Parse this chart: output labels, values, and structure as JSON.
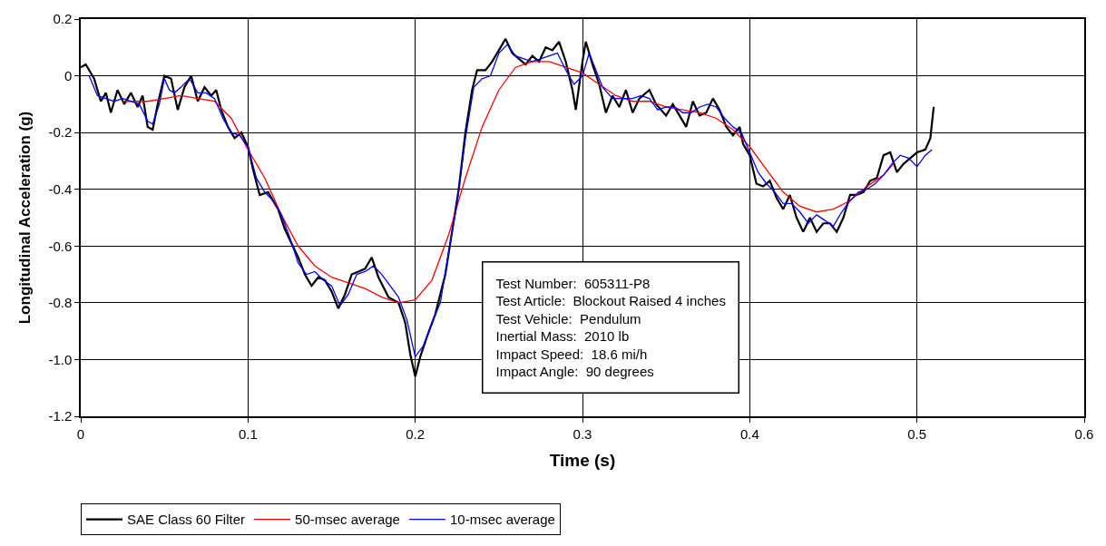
{
  "chart_data": {
    "type": "line",
    "xlabel": "Time (s)",
    "ylabel": "Longitudinal Acceleration (g)",
    "xlim": [
      0,
      0.6
    ],
    "xticks": [
      0,
      0.1,
      0.2,
      0.3,
      0.4,
      0.5,
      0.6
    ],
    "ylim": [
      -1.2,
      0.2
    ],
    "yticks": [
      0.2,
      0,
      -0.2,
      -0.4,
      -0.6,
      -0.8,
      {
        "value": -1.0,
        "label": "-1.0"
      },
      -1.2
    ],
    "grid": true,
    "legend": "bottom",
    "marker": "none",
    "line_style": "solid",
    "annotations": [
      "Test Number:  605311-P8",
      "Test Article:  Blockout Raised 4 inches",
      "Test Vehicle:  Pendulum",
      "Inertial Mass:  2010 lb",
      "Impact Speed:  18.6 mi/h",
      "Impact Angle:  90 degrees"
    ],
    "series": [
      {
        "name": "SAE Class 60 Filter",
        "color": "#000000",
        "x": [
          0.0,
          0.003,
          0.008,
          0.012,
          0.015,
          0.018,
          0.022,
          0.026,
          0.03,
          0.034,
          0.037,
          0.04,
          0.043,
          0.046,
          0.05,
          0.054,
          0.058,
          0.062,
          0.066,
          0.07,
          0.074,
          0.078,
          0.081,
          0.084,
          0.088,
          0.092,
          0.096,
          0.1,
          0.103,
          0.107,
          0.112,
          0.118,
          0.122,
          0.126,
          0.13,
          0.134,
          0.138,
          0.142,
          0.146,
          0.15,
          0.154,
          0.158,
          0.162,
          0.166,
          0.17,
          0.174,
          0.178,
          0.184,
          0.19,
          0.194,
          0.197,
          0.2,
          0.203,
          0.207,
          0.212,
          0.218,
          0.222,
          0.226,
          0.23,
          0.234,
          0.237,
          0.242,
          0.246,
          0.25,
          0.254,
          0.258,
          0.262,
          0.266,
          0.27,
          0.274,
          0.278,
          0.282,
          0.286,
          0.29,
          0.294,
          0.296,
          0.3,
          0.302,
          0.306,
          0.31,
          0.314,
          0.318,
          0.322,
          0.326,
          0.33,
          0.334,
          0.34,
          0.344,
          0.35,
          0.354,
          0.358,
          0.362,
          0.366,
          0.37,
          0.374,
          0.378,
          0.382,
          0.386,
          0.39,
          0.394,
          0.396,
          0.4,
          0.404,
          0.408,
          0.412,
          0.416,
          0.42,
          0.424,
          0.428,
          0.432,
          0.436,
          0.44,
          0.444,
          0.448,
          0.452,
          0.456,
          0.46,
          0.464,
          0.468,
          0.472,
          0.476,
          0.48,
          0.484,
          0.488,
          0.492,
          0.496,
          0.5,
          0.505,
          0.508,
          0.51
        ],
        "values": [
          0.03,
          0.04,
          -0.01,
          -0.09,
          -0.06,
          -0.13,
          -0.05,
          -0.1,
          -0.06,
          -0.11,
          -0.07,
          -0.18,
          -0.19,
          -0.1,
          0.0,
          -0.01,
          -0.12,
          -0.04,
          0.0,
          -0.09,
          -0.04,
          -0.07,
          -0.05,
          -0.12,
          -0.18,
          -0.22,
          -0.2,
          -0.25,
          -0.33,
          -0.42,
          -0.41,
          -0.47,
          -0.54,
          -0.59,
          -0.64,
          -0.7,
          -0.74,
          -0.71,
          -0.72,
          -0.76,
          -0.82,
          -0.77,
          -0.7,
          -0.69,
          -0.68,
          -0.64,
          -0.71,
          -0.78,
          -0.8,
          -0.87,
          -0.98,
          -1.06,
          -0.99,
          -0.92,
          -0.84,
          -0.7,
          -0.55,
          -0.4,
          -0.2,
          -0.05,
          0.02,
          0.02,
          0.05,
          0.09,
          0.13,
          0.08,
          0.06,
          0.04,
          0.07,
          0.05,
          0.1,
          0.09,
          0.12,
          0.05,
          -0.05,
          -0.12,
          0.05,
          0.12,
          0.04,
          -0.03,
          -0.13,
          -0.07,
          -0.11,
          -0.05,
          -0.13,
          -0.08,
          -0.05,
          -0.1,
          -0.14,
          -0.1,
          -0.14,
          -0.18,
          -0.09,
          -0.14,
          -0.13,
          -0.08,
          -0.12,
          -0.18,
          -0.21,
          -0.18,
          -0.24,
          -0.28,
          -0.38,
          -0.39,
          -0.37,
          -0.43,
          -0.47,
          -0.42,
          -0.5,
          -0.55,
          -0.5,
          -0.55,
          -0.52,
          -0.52,
          -0.55,
          -0.5,
          -0.42,
          -0.42,
          -0.41,
          -0.37,
          -0.36,
          -0.28,
          -0.27,
          -0.34,
          -0.31,
          -0.29,
          -0.27,
          -0.26,
          -0.22,
          -0.11
        ]
      },
      {
        "name": "50-msec average",
        "color": "#ff0000",
        "x": [
          0.025,
          0.04,
          0.05,
          0.06,
          0.07,
          0.08,
          0.09,
          0.1,
          0.11,
          0.12,
          0.13,
          0.14,
          0.15,
          0.16,
          0.17,
          0.18,
          0.19,
          0.2,
          0.21,
          0.22,
          0.23,
          0.24,
          0.25,
          0.26,
          0.27,
          0.28,
          0.29,
          0.3,
          0.31,
          0.32,
          0.33,
          0.34,
          0.35,
          0.36,
          0.37,
          0.38,
          0.39,
          0.4,
          0.41,
          0.42,
          0.43,
          0.44,
          0.45,
          0.46,
          0.47,
          0.48,
          0.486
        ],
        "values": [
          -0.09,
          -0.09,
          -0.08,
          -0.07,
          -0.08,
          -0.09,
          -0.15,
          -0.26,
          -0.36,
          -0.49,
          -0.6,
          -0.67,
          -0.71,
          -0.73,
          -0.75,
          -0.78,
          -0.8,
          -0.79,
          -0.72,
          -0.56,
          -0.36,
          -0.18,
          -0.05,
          0.03,
          0.05,
          0.05,
          0.03,
          0.01,
          -0.03,
          -0.07,
          -0.09,
          -0.09,
          -0.11,
          -0.12,
          -0.13,
          -0.15,
          -0.19,
          -0.25,
          -0.33,
          -0.41,
          -0.46,
          -0.48,
          -0.47,
          -0.44,
          -0.39,
          -0.35,
          -0.31
        ]
      },
      {
        "name": "10-msec average",
        "color": "#0000ff",
        "x": [
          0.005,
          0.01,
          0.015,
          0.02,
          0.025,
          0.03,
          0.035,
          0.04,
          0.043,
          0.047,
          0.05,
          0.053,
          0.056,
          0.06,
          0.065,
          0.07,
          0.075,
          0.08,
          0.085,
          0.09,
          0.095,
          0.1,
          0.105,
          0.11,
          0.115,
          0.12,
          0.125,
          0.13,
          0.135,
          0.14,
          0.145,
          0.15,
          0.155,
          0.16,
          0.165,
          0.17,
          0.175,
          0.18,
          0.185,
          0.19,
          0.195,
          0.2,
          0.205,
          0.21,
          0.215,
          0.22,
          0.225,
          0.23,
          0.235,
          0.24,
          0.245,
          0.25,
          0.255,
          0.26,
          0.265,
          0.27,
          0.275,
          0.28,
          0.285,
          0.29,
          0.295,
          0.3,
          0.304,
          0.308,
          0.312,
          0.318,
          0.325,
          0.33,
          0.335,
          0.34,
          0.345,
          0.35,
          0.355,
          0.36,
          0.365,
          0.37,
          0.375,
          0.38,
          0.385,
          0.39,
          0.395,
          0.4,
          0.405,
          0.41,
          0.415,
          0.42,
          0.425,
          0.43,
          0.435,
          0.44,
          0.445,
          0.45,
          0.455,
          0.46,
          0.465,
          0.47,
          0.475,
          0.48,
          0.485,
          0.49,
          0.495,
          0.5,
          0.505,
          0.509
        ],
        "values": [
          0.0,
          -0.07,
          -0.08,
          -0.09,
          -0.08,
          -0.09,
          -0.1,
          -0.16,
          -0.17,
          -0.1,
          -0.01,
          -0.05,
          -0.06,
          -0.04,
          -0.01,
          -0.06,
          -0.06,
          -0.08,
          -0.15,
          -0.2,
          -0.21,
          -0.25,
          -0.36,
          -0.41,
          -0.44,
          -0.49,
          -0.57,
          -0.66,
          -0.7,
          -0.69,
          -0.72,
          -0.74,
          -0.81,
          -0.77,
          -0.7,
          -0.69,
          -0.67,
          -0.7,
          -0.74,
          -0.78,
          -0.86,
          -0.99,
          -0.95,
          -0.87,
          -0.8,
          -0.62,
          -0.45,
          -0.22,
          -0.04,
          -0.01,
          0.0,
          0.08,
          0.11,
          0.07,
          0.06,
          0.05,
          0.06,
          0.07,
          0.08,
          0.02,
          -0.03,
          0.0,
          0.08,
          0.02,
          -0.04,
          -0.08,
          -0.08,
          -0.08,
          -0.07,
          -0.08,
          -0.12,
          -0.11,
          -0.11,
          -0.13,
          -0.13,
          -0.11,
          -0.1,
          -0.11,
          -0.15,
          -0.18,
          -0.2,
          -0.27,
          -0.34,
          -0.38,
          -0.41,
          -0.45,
          -0.45,
          -0.48,
          -0.52,
          -0.49,
          -0.51,
          -0.53,
          -0.48,
          -0.44,
          -0.41,
          -0.4,
          -0.38,
          -0.35,
          -0.31,
          -0.28,
          -0.29,
          -0.32,
          -0.28,
          -0.26
        ]
      }
    ]
  }
}
